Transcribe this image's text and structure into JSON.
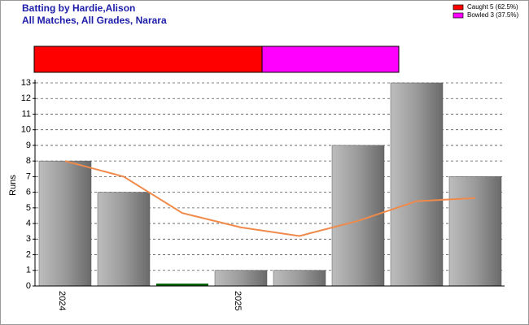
{
  "chart_data": [
    {
      "type": "hbar_stack",
      "title": "Batting by Hardie,Alison",
      "subtitle": "All Matches, All Grades, Narara",
      "legend": "top-right",
      "xlim": [
        0,
        8
      ],
      "series": [
        {
          "name": "Caught 5 (62.5%)",
          "color": "#ff0000",
          "values": [
            5
          ]
        },
        {
          "name": "Bowled 3 (37.5%)",
          "color": "#ff00ff",
          "values": [
            3
          ]
        }
      ]
    },
    {
      "type": "bar",
      "ylabel": "Runs",
      "categories": [
        "2024",
        null,
        null,
        "2025",
        null,
        null,
        null,
        null
      ],
      "values": [
        8,
        6,
        0,
        1,
        1,
        9,
        13,
        7
      ],
      "colors": [
        "gray",
        "gray",
        "#006400",
        "gray",
        "gray",
        "gray",
        "gray",
        "gray"
      ],
      "line": {
        "color": "#f08a4b",
        "values": [
          8,
          7,
          4.67,
          3.75,
          3.2,
          4.17,
          5.43,
          5.63
        ]
      },
      "ylim": [
        0,
        13
      ],
      "yticks": [
        0,
        1,
        2,
        3,
        4,
        5,
        6,
        7,
        8,
        9,
        10,
        11,
        12,
        13
      ],
      "grid": true
    }
  ]
}
